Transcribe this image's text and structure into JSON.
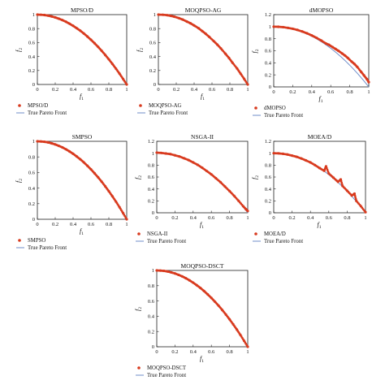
{
  "colors": {
    "points": "#d83a1e",
    "front_line": "#6f8ec9",
    "axis": "#222222",
    "text": "#111111"
  },
  "icons": {
    "legend_point": "red-dot",
    "legend_line": "blue-line"
  },
  "chart_data": [
    {
      "type": "scatter",
      "title": "MPSO/D",
      "xlabel": "f1",
      "ylabel": "f2",
      "xlim": [
        0,
        1
      ],
      "ylim": [
        0,
        1
      ],
      "xticks": [
        "0",
        "0.2",
        "0.4",
        "0.6",
        "0.8",
        "1"
      ],
      "yticks": [
        "0",
        "0.2",
        "0.4",
        "0.6",
        "0.8",
        "1"
      ],
      "grid": false,
      "legend": [
        "MPSO/D",
        "True Pareto Front"
      ],
      "series": [
        {
          "name": "MPSO/D",
          "style": "points",
          "x": [
            0.0,
            0.04,
            0.08,
            0.12,
            0.16,
            0.2,
            0.24,
            0.28,
            0.32,
            0.36,
            0.4,
            0.44,
            0.48,
            0.52,
            0.56,
            0.6,
            0.64,
            0.68,
            0.72,
            0.76,
            0.8,
            0.84,
            0.88,
            0.92,
            0.96,
            1.0
          ],
          "y": [
            1.0,
            0.998,
            0.994,
            0.986,
            0.974,
            0.96,
            0.942,
            0.922,
            0.898,
            0.87,
            0.84,
            0.806,
            0.77,
            0.73,
            0.686,
            0.64,
            0.59,
            0.538,
            0.482,
            0.422,
            0.36,
            0.294,
            0.226,
            0.154,
            0.078,
            0.0
          ]
        },
        {
          "name": "True Pareto Front",
          "style": "line",
          "function": "1 - x^2"
        }
      ]
    },
    {
      "type": "scatter",
      "title": "MOQPSO-AG",
      "xlabel": "f1",
      "ylabel": "f2",
      "xlim": [
        0,
        1
      ],
      "ylim": [
        0,
        1
      ],
      "xticks": [
        "0",
        "0.2",
        "0.4",
        "0.6",
        "0.8",
        "1"
      ],
      "yticks": [
        "0",
        "0.2",
        "0.4",
        "0.6",
        "0.8",
        "1"
      ],
      "grid": false,
      "legend": [
        "MOQPSO-AG",
        "True Pareto Front"
      ],
      "series": [
        {
          "name": "MOQPSO-AG",
          "style": "points",
          "x": [
            0.0,
            0.05,
            0.1,
            0.14,
            0.18,
            0.23,
            0.27,
            0.32,
            0.36,
            0.4,
            0.45,
            0.49,
            0.53,
            0.57,
            0.62,
            0.66,
            0.7,
            0.75,
            0.79,
            0.83,
            0.88,
            0.92,
            0.96,
            1.0
          ],
          "y": [
            1.0,
            0.998,
            0.992,
            0.982,
            0.97,
            0.95,
            0.93,
            0.9,
            0.875,
            0.845,
            0.805,
            0.765,
            0.725,
            0.68,
            0.62,
            0.57,
            0.515,
            0.44,
            0.38,
            0.31,
            0.23,
            0.155,
            0.08,
            0.0
          ]
        },
        {
          "name": "True Pareto Front",
          "style": "line",
          "function": "1 - x^2"
        }
      ]
    },
    {
      "type": "scatter",
      "title": "dMOPSO",
      "xlabel": "f1",
      "ylabel": "f2",
      "xlim": [
        0,
        1
      ],
      "ylim": [
        0,
        1.2
      ],
      "xticks": [
        "0",
        "0.2",
        "0.4",
        "0.6",
        "0.8",
        "1"
      ],
      "yticks": [
        "0",
        "0.2",
        "0.4",
        "0.6",
        "0.8",
        "1",
        "1.2"
      ],
      "grid": false,
      "legend": [
        "dMOPSO",
        "True Pareto Front"
      ],
      "series": [
        {
          "name": "dMOPSO",
          "style": "points",
          "x": [
            0.0,
            0.05,
            0.1,
            0.15,
            0.2,
            0.25,
            0.3,
            0.35,
            0.4,
            0.45,
            0.5,
            0.55,
            0.58,
            0.62,
            0.65,
            0.68,
            0.72,
            0.75,
            0.78,
            0.82,
            0.85,
            0.88,
            0.92,
            0.95,
            0.98,
            1.0
          ],
          "y": [
            1.0,
            0.998,
            0.992,
            0.98,
            0.965,
            0.945,
            0.92,
            0.89,
            0.855,
            0.815,
            0.77,
            0.72,
            0.7,
            0.66,
            0.63,
            0.6,
            0.555,
            0.52,
            0.48,
            0.42,
            0.38,
            0.33,
            0.25,
            0.19,
            0.13,
            0.08
          ]
        },
        {
          "name": "True Pareto Front",
          "style": "line",
          "function": "1 - x^2"
        }
      ]
    },
    {
      "type": "scatter",
      "title": "SMPSO",
      "xlabel": "f1",
      "ylabel": "f2",
      "xlim": [
        0,
        1
      ],
      "ylim": [
        0,
        1
      ],
      "xticks": [
        "0",
        "0.2",
        "0.4",
        "0.6",
        "0.8",
        "1"
      ],
      "yticks": [
        "0",
        "0.2",
        "0.4",
        "0.6",
        "0.8",
        "1"
      ],
      "grid": false,
      "legend": [
        "SMPSO",
        "True Pareto Front"
      ],
      "series": [
        {
          "name": "SMPSO",
          "style": "points",
          "x": [
            0.0,
            0.04,
            0.08,
            0.12,
            0.16,
            0.2,
            0.24,
            0.28,
            0.32,
            0.36,
            0.4,
            0.44,
            0.48,
            0.52,
            0.56,
            0.6,
            0.64,
            0.68,
            0.72,
            0.76,
            0.8,
            0.84,
            0.88,
            0.92,
            0.96,
            1.0
          ],
          "y": [
            1.0,
            0.998,
            0.994,
            0.986,
            0.974,
            0.96,
            0.942,
            0.922,
            0.898,
            0.87,
            0.84,
            0.806,
            0.77,
            0.73,
            0.686,
            0.64,
            0.59,
            0.538,
            0.482,
            0.422,
            0.36,
            0.294,
            0.226,
            0.154,
            0.078,
            0.0
          ]
        },
        {
          "name": "True Pareto Front",
          "style": "line",
          "function": "1 - x^2"
        }
      ]
    },
    {
      "type": "scatter",
      "title": "NSGA-II",
      "xlabel": "f1",
      "ylabel": "f2",
      "xlim": [
        0,
        1
      ],
      "ylim": [
        0,
        1.2
      ],
      "xticks": [
        "0",
        "0.2",
        "0.4",
        "0.6",
        "0.8",
        "1"
      ],
      "yticks": [
        "0",
        "0.2",
        "0.4",
        "0.6",
        "0.8",
        "1",
        "1.2"
      ],
      "grid": false,
      "legend": [
        "NSGA-II",
        "True Pareto Front"
      ],
      "series": [
        {
          "name": "NSGA-II",
          "style": "points",
          "x": [
            0.0,
            0.05,
            0.1,
            0.15,
            0.2,
            0.25,
            0.3,
            0.35,
            0.4,
            0.45,
            0.5,
            0.55,
            0.6,
            0.65,
            0.7,
            0.75,
            0.8,
            0.85,
            0.9,
            0.95,
            0.98,
            1.0
          ],
          "y": [
            1.01,
            1.005,
            0.995,
            0.985,
            0.965,
            0.945,
            0.915,
            0.885,
            0.845,
            0.805,
            0.755,
            0.7,
            0.645,
            0.58,
            0.515,
            0.44,
            0.365,
            0.285,
            0.2,
            0.11,
            0.06,
            0.03
          ]
        },
        {
          "name": "True Pareto Front",
          "style": "line",
          "function": "1 - x^2"
        }
      ]
    },
    {
      "type": "scatter",
      "title": "MOEA/D",
      "xlabel": "f1",
      "ylabel": "f2",
      "xlim": [
        0,
        1
      ],
      "ylim": [
        0,
        1.2
      ],
      "xticks": [
        "0",
        "0.2",
        "0.4",
        "0.6",
        "0.8",
        "1"
      ],
      "yticks": [
        "0",
        "0.2",
        "0.4",
        "0.6",
        "0.8",
        "1",
        "1.2"
      ],
      "grid": false,
      "legend": [
        "MOEA/D",
        "True Pareto Front"
      ],
      "series": [
        {
          "name": "MOEA/D",
          "style": "points",
          "x": [
            0.0,
            0.05,
            0.1,
            0.15,
            0.2,
            0.25,
            0.3,
            0.35,
            0.4,
            0.45,
            0.5,
            0.55,
            0.57,
            0.6,
            0.65,
            0.7,
            0.73,
            0.75,
            0.8,
            0.85,
            0.88,
            0.9,
            0.95,
            1.0
          ],
          "y": [
            1.0,
            0.998,
            0.99,
            0.978,
            0.96,
            0.94,
            0.912,
            0.88,
            0.845,
            0.8,
            0.75,
            0.705,
            0.78,
            0.66,
            0.59,
            0.52,
            0.56,
            0.45,
            0.37,
            0.29,
            0.32,
            0.2,
            0.11,
            0.01
          ]
        },
        {
          "name": "True Pareto Front",
          "style": "line",
          "function": "1 - x^2"
        }
      ]
    },
    {
      "type": "scatter",
      "title": "MOQPSO-DSCT",
      "xlabel": "f1",
      "ylabel": "f2",
      "xlim": [
        0,
        1
      ],
      "ylim": [
        0,
        1
      ],
      "xticks": [
        "0",
        "0.2",
        "0.4",
        "0.6",
        "0.8",
        "1"
      ],
      "yticks": [
        "0",
        "0.2",
        "0.4",
        "0.6",
        "0.8",
        "1"
      ],
      "grid": false,
      "legend": [
        "MOQPSO-DSCT",
        "True Pareto Front"
      ],
      "series": [
        {
          "name": "MOQPSO-DSCT",
          "style": "points",
          "x": [
            0.0,
            0.04,
            0.08,
            0.12,
            0.16,
            0.2,
            0.24,
            0.28,
            0.32,
            0.36,
            0.4,
            0.44,
            0.48,
            0.52,
            0.56,
            0.6,
            0.64,
            0.68,
            0.72,
            0.76,
            0.8,
            0.84,
            0.88,
            0.92,
            0.96,
            1.0
          ],
          "y": [
            1.0,
            0.998,
            0.994,
            0.986,
            0.974,
            0.96,
            0.942,
            0.922,
            0.898,
            0.87,
            0.84,
            0.806,
            0.77,
            0.73,
            0.686,
            0.64,
            0.59,
            0.538,
            0.482,
            0.422,
            0.36,
            0.294,
            0.226,
            0.154,
            0.078,
            0.0
          ]
        },
        {
          "name": "True Pareto Front",
          "style": "line",
          "function": "1 - x^2"
        }
      ]
    }
  ]
}
